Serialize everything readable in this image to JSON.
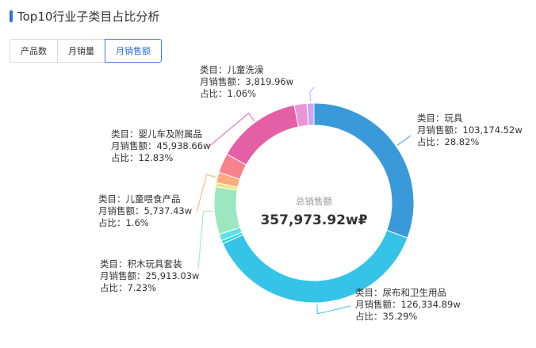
{
  "page": {
    "title": "Top10行业子类目占比分析",
    "tabs": [
      {
        "label": "产品数",
        "active": false
      },
      {
        "label": "月销量",
        "active": false
      },
      {
        "label": "月销售额",
        "active": true
      }
    ]
  },
  "chart_data": {
    "type": "pie",
    "variant": "donut",
    "center_label": "总销售额",
    "center_value": "357,973.92w₽",
    "label_prefixes": {
      "category": "类目：",
      "sales": "月销售额：",
      "share": "占比："
    },
    "slices": [
      {
        "name": "玩具",
        "value_text": "103,174.52w",
        "value": 103174.52,
        "share_text": "28.82%",
        "share": 28.82,
        "color": "#3a9ad9"
      },
      {
        "name": "尿布和卫生用品",
        "value_text": "126,334.89w",
        "value": 126334.89,
        "share_text": "35.29%",
        "share": 35.29,
        "color": "#36c3e8"
      },
      {
        "name": "",
        "value": 1750,
        "share": 0.49,
        "color": "#22d6d6",
        "unlabeled": true
      },
      {
        "name": "",
        "value": 3600,
        "share": 1.0,
        "color": "#5fe0e8",
        "unlabeled": true
      },
      {
        "name": "积木玩具套装",
        "value_text": "25,913.03w",
        "value": 25913.03,
        "share_text": "7.23%",
        "share": 7.23,
        "color": "#9de7c0"
      },
      {
        "name": "",
        "value": 2150,
        "share": 0.6,
        "color": "#f5e27a",
        "unlabeled": true
      },
      {
        "name": "儿童喂食产品",
        "value_text": "5,737.43w",
        "value": 5737.43,
        "share_text": "1.6%",
        "share": 1.6,
        "color": "#ffab7e"
      },
      {
        "name": "",
        "value": 10700,
        "share": 3.0,
        "color": "#f7818c",
        "unlabeled": true
      },
      {
        "name": "婴儿车及附属品",
        "value_text": "45,938.66w",
        "value": 45938.66,
        "share_text": "12.83%",
        "share": 12.83,
        "color": "#e55fa6"
      },
      {
        "name": "",
        "value": 6870,
        "share": 1.92,
        "color": "#e896d3",
        "unlabeled": true
      },
      {
        "name": "儿童洗澡",
        "value_text": "3,819.96w",
        "value": 3819.96,
        "share_text": "1.06%",
        "share": 1.06,
        "color": "#c8a6f5"
      }
    ]
  }
}
